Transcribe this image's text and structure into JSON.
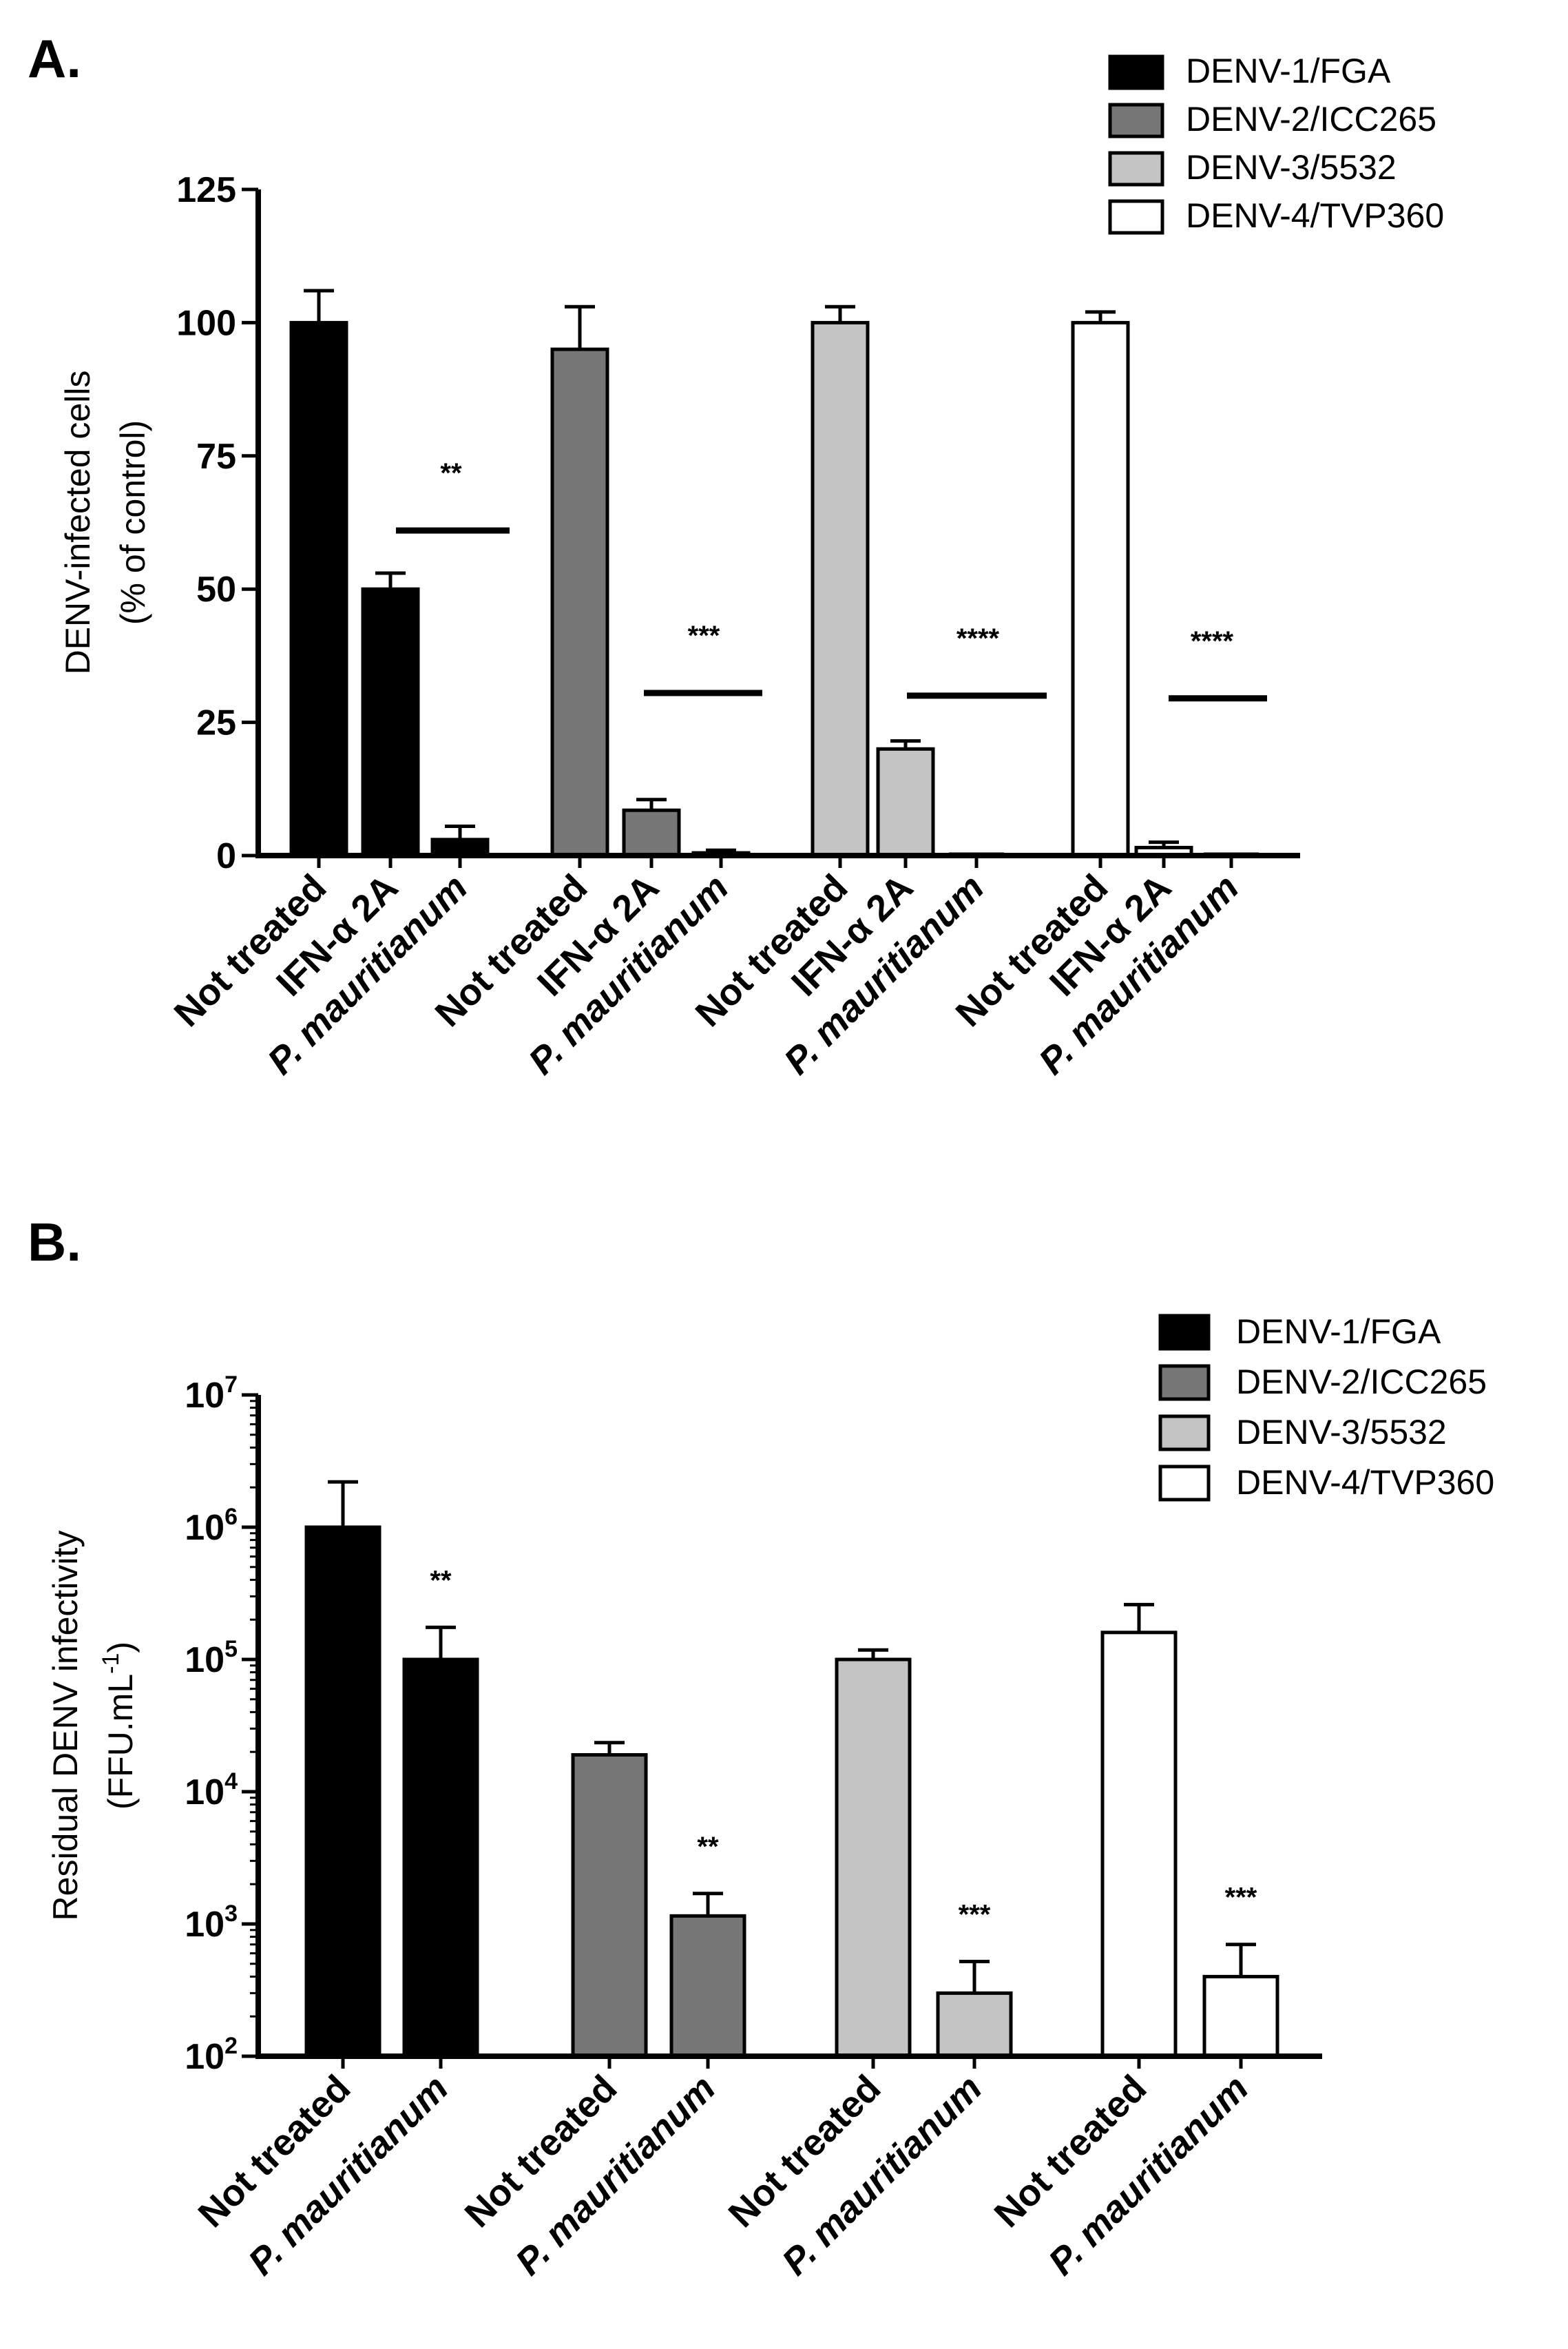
{
  "chart_data": [
    {
      "panel_label": "A.",
      "type": "bar",
      "scale": "linear",
      "ylabel": "DENV-infected cells",
      "ylabel2": "(% of control)",
      "ylim": [
        0,
        125
      ],
      "yticks": [
        {
          "value": 0,
          "label": "0"
        },
        {
          "value": 25,
          "label": "25"
        },
        {
          "value": 50,
          "label": "50"
        },
        {
          "value": 75,
          "label": "75"
        },
        {
          "value": 100,
          "label": "100"
        },
        {
          "value": 125,
          "label": "125"
        }
      ],
      "legend": [
        {
          "label": "DENV-1/FGA",
          "color": "#000000"
        },
        {
          "label": "DENV-2/ICC265",
          "color": "#777777"
        },
        {
          "label": "DENV-3/5532",
          "color": "#c4c4c4"
        },
        {
          "label": "DENV-4/TVP360",
          "color": "#ffffff"
        }
      ],
      "groups": [
        {
          "series": "DENV-1/FGA",
          "color": "#000000",
          "significance": "**",
          "sig_line_y": 61,
          "bars": [
            {
              "label": "Not treated",
              "italic_prefix": "",
              "value": 100,
              "error": 6
            },
            {
              "label": "IFN-α 2A",
              "italic_prefix": "",
              "value": 50,
              "error": 3
            },
            {
              "label": "mauritianum",
              "italic_prefix": "P. ",
              "value": 3,
              "error": 2.5
            }
          ]
        },
        {
          "series": "DENV-2/ICC265",
          "color": "#777777",
          "significance": "***",
          "sig_line_y": 30.5,
          "bars": [
            {
              "label": "Not treated",
              "italic_prefix": "",
              "value": 95,
              "error": 8
            },
            {
              "label": "IFN-α 2A",
              "italic_prefix": "",
              "value": 8.5,
              "error": 2
            },
            {
              "label": "mauritianum",
              "italic_prefix": "P. ",
              "value": 0.5,
              "error": 0.5
            }
          ]
        },
        {
          "series": "DENV-3/5532",
          "color": "#c4c4c4",
          "significance": "****",
          "sig_line_y": 30,
          "bars": [
            {
              "label": "Not treated",
              "italic_prefix": "",
              "value": 100,
              "error": 3
            },
            {
              "label": "IFN-α 2A",
              "italic_prefix": "",
              "value": 20,
              "error": 1.5
            },
            {
              "label": "mauritianum",
              "italic_prefix": "P. ",
              "value": 0,
              "error": 0
            }
          ]
        },
        {
          "series": "DENV-4/TVP360",
          "color": "#ffffff",
          "significance": "****",
          "sig_line_y": 29.5,
          "bars": [
            {
              "label": "Not treated",
              "italic_prefix": "",
              "value": 100,
              "error": 2
            },
            {
              "label": "IFN-α 2A",
              "italic_prefix": "",
              "value": 1.5,
              "error": 1
            },
            {
              "label": "mauritianum",
              "italic_prefix": "P. ",
              "value": 0,
              "error": 0
            }
          ]
        }
      ]
    },
    {
      "panel_label": "B.",
      "type": "bar",
      "scale": "log",
      "ylabel": "Residual DENV infectivity",
      "ylabel2": "(FFU.mL",
      "ylabel2_sup": "-1",
      "ylabel2_close": ")",
      "ylim_exp": [
        2,
        7
      ],
      "yticks": [
        {
          "exp": 2,
          "base": "10",
          "sup": "2"
        },
        {
          "exp": 3,
          "base": "10",
          "sup": "3"
        },
        {
          "exp": 4,
          "base": "10",
          "sup": "4"
        },
        {
          "exp": 5,
          "base": "10",
          "sup": "5"
        },
        {
          "exp": 6,
          "base": "10",
          "sup": "6"
        },
        {
          "exp": 7,
          "base": "10",
          "sup": "7"
        }
      ],
      "legend": [
        {
          "label": "DENV-1/FGA",
          "color": "#000000"
        },
        {
          "label": "DENV-2/ICC265",
          "color": "#777777"
        },
        {
          "label": "DENV-3/5532",
          "color": "#c4c4c4"
        },
        {
          "label": "DENV-4/TVP360",
          "color": "#ffffff"
        }
      ],
      "groups": [
        {
          "series": "DENV-1/FGA",
          "color": "#000000",
          "bars": [
            {
              "label": "Not treated",
              "italic_prefix": "",
              "value": 1000000,
              "error_top": 2200000,
              "significance": ""
            },
            {
              "label": "mauritianum",
              "italic_prefix": "P. ",
              "value": 100000,
              "error_top": 175000,
              "significance": "**"
            }
          ]
        },
        {
          "series": "DENV-2/ICC265",
          "color": "#777777",
          "bars": [
            {
              "label": "Not treated",
              "italic_prefix": "",
              "value": 19000,
              "error_top": 23500,
              "significance": ""
            },
            {
              "label": "mauritianum",
              "italic_prefix": "P. ",
              "value": 1150,
              "error_top": 1700,
              "significance": "**"
            }
          ]
        },
        {
          "series": "DENV-3/5532",
          "color": "#c4c4c4",
          "bars": [
            {
              "label": "Not treated",
              "italic_prefix": "",
              "value": 100000,
              "error_top": 118000,
              "significance": ""
            },
            {
              "label": "mauritianum",
              "italic_prefix": "P. ",
              "value": 300,
              "error_top": 520,
              "significance": "***"
            }
          ]
        },
        {
          "series": "DENV-4/TVP360",
          "color": "#ffffff",
          "bars": [
            {
              "label": "Not treated",
              "italic_prefix": "",
              "value": 160000,
              "error_top": 260000,
              "significance": ""
            },
            {
              "label": "mauritianum",
              "italic_prefix": "P. ",
              "value": 400,
              "error_top": 700,
              "significance": "***"
            }
          ]
        }
      ]
    }
  ]
}
